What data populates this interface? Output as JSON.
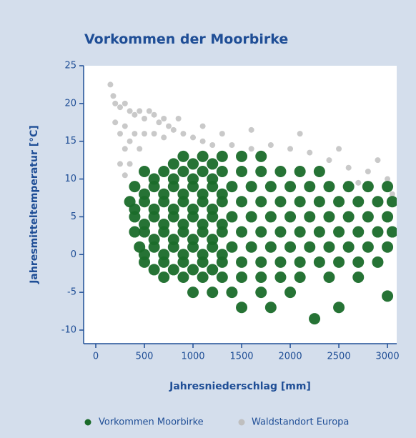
{
  "chart_data": {
    "type": "scatter",
    "title": "Vorkommen der Moorbirke",
    "x_label": "Jahresniederschlag [mm]",
    "y_label": "Jahresmitteltemperatur [°C]",
    "xlim": [
      -125,
      3095
    ],
    "ylim": [
      -11.8,
      25
    ],
    "xticks": [
      0,
      500,
      1000,
      1500,
      2000,
      2500,
      3000
    ],
    "yticks": [
      -10,
      -5,
      0,
      5,
      10,
      15,
      20,
      25
    ],
    "legend": "bottom",
    "series": [
      {
        "name": "Waldstandort Europa",
        "color": "#bfbfbf",
        "x": [
          150,
          180,
          200,
          250,
          300,
          350,
          400,
          450,
          500,
          550,
          600,
          650,
          700,
          750,
          800,
          900,
          1000,
          300,
          250,
          300,
          250,
          300,
          350,
          400,
          500,
          600,
          700,
          350,
          1100,
          1200,
          1400,
          1600,
          1800,
          2000,
          2200,
          2400,
          2600,
          2800,
          3000,
          1300,
          1600,
          2100,
          2500,
          2900,
          200,
          450,
          850,
          1100,
          3050,
          2700
        ],
        "values": [
          22.5,
          21,
          20,
          19.5,
          20,
          19,
          18.5,
          19,
          18,
          19,
          18.5,
          17.5,
          18,
          17,
          16.5,
          16,
          15.5,
          17,
          16,
          14,
          12,
          10.5,
          15,
          16,
          16,
          16,
          15.5,
          12,
          15,
          14.5,
          14.5,
          14,
          14.5,
          14,
          13.5,
          12.5,
          11.5,
          11,
          10,
          16,
          16.5,
          16,
          14,
          12.5,
          17.5,
          14,
          18,
          17,
          8,
          9.5
        ]
      },
      {
        "name": "Vorkommen Moorbirke",
        "color": "#1a6b2a",
        "x": [
          900,
          1100,
          1300,
          1500,
          1700,
          800,
          1000,
          1200,
          500,
          700,
          900,
          1100,
          1300,
          1500,
          1700,
          1900,
          2100,
          2300,
          600,
          800,
          1000,
          1200,
          400,
          600,
          800,
          1000,
          1200,
          1400,
          1600,
          1800,
          2000,
          2200,
          2400,
          2600,
          2800,
          3000,
          500,
          700,
          900,
          1100,
          1300,
          350,
          500,
          700,
          900,
          1100,
          1300,
          1500,
          1700,
          1900,
          2100,
          2300,
          2500,
          2700,
          2900,
          3050,
          400,
          600,
          800,
          1000,
          1200,
          400,
          600,
          800,
          1000,
          1200,
          1400,
          1600,
          1800,
          2000,
          2200,
          2400,
          2600,
          2800,
          3000,
          500,
          700,
          900,
          1100,
          1300,
          400,
          500,
          700,
          900,
          1100,
          1300,
          1500,
          1700,
          1900,
          2100,
          2300,
          2500,
          2700,
          2900,
          3050,
          600,
          800,
          1000,
          1200,
          450,
          600,
          800,
          1000,
          1200,
          1400,
          1600,
          1800,
          2000,
          2200,
          2400,
          2600,
          2800,
          3000,
          500,
          700,
          900,
          1100,
          1300,
          500,
          700,
          900,
          1100,
          1300,
          1500,
          1700,
          1900,
          2100,
          2300,
          2500,
          2700,
          2900,
          600,
          800,
          1000,
          1200,
          700,
          900,
          1100,
          1300,
          1500,
          1700,
          1900,
          2100,
          2400,
          2700,
          1000,
          1200,
          1400,
          1700,
          2000,
          1500,
          1800,
          2500,
          2250,
          3000
        ],
        "values": [
          13,
          13,
          13,
          13,
          13,
          12,
          12,
          12,
          11,
          11,
          11,
          11,
          11,
          11,
          11,
          11,
          11,
          11,
          10,
          10,
          10,
          10,
          9,
          9,
          9,
          9,
          9,
          9,
          9,
          9,
          9,
          9,
          9,
          9,
          9,
          9,
          8,
          8,
          8,
          8,
          8,
          7,
          7,
          7,
          7,
          7,
          7,
          7,
          7,
          7,
          7,
          7,
          7,
          7,
          7,
          7,
          6,
          6,
          6,
          6,
          6,
          5,
          5,
          5,
          5,
          5,
          5,
          5,
          5,
          5,
          5,
          5,
          5,
          5,
          5,
          4,
          4,
          4,
          4,
          4,
          3,
          3,
          3,
          3,
          3,
          3,
          3,
          3,
          3,
          3,
          3,
          3,
          3,
          3,
          3,
          2,
          2,
          2,
          2,
          1,
          1,
          1,
          1,
          1,
          1,
          1,
          1,
          1,
          1,
          1,
          1,
          1,
          1,
          0,
          0,
          0,
          0,
          0,
          -1,
          -1,
          -1,
          -1,
          -1,
          -1,
          -1,
          -1,
          -1,
          -1,
          -1,
          -1,
          -1,
          -2,
          -2,
          -2,
          -2,
          -3,
          -3,
          -3,
          -3,
          -3,
          -3,
          -3,
          -3,
          -3,
          -3,
          -5,
          -5,
          -5,
          -5,
          -5,
          -7,
          -7,
          -7,
          -8.5,
          -5.5
        ]
      }
    ]
  }
}
